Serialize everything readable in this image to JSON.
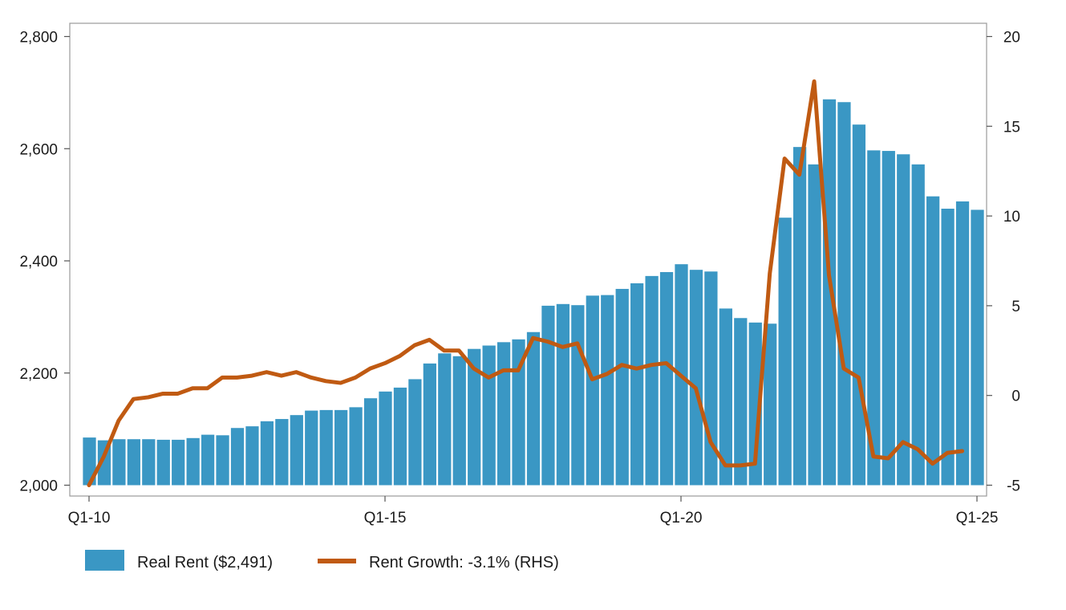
{
  "chart_data": {
    "type": "bar+line",
    "title": "",
    "xlabel": "",
    "ylabel": "",
    "x_tick_labels": [
      "Q1-10",
      "Q1-15",
      "Q1-20",
      "Q1-25"
    ],
    "y_left": {
      "lim": [
        2000,
        2800
      ],
      "ticks": [
        2000,
        2200,
        2400,
        2600,
        2800
      ],
      "tick_labels": [
        "2,000",
        "2,200",
        "2,400",
        "2,600",
        "2,800"
      ]
    },
    "y_right": {
      "lim": [
        -5,
        20
      ],
      "ticks": [
        -5,
        0,
        5,
        10,
        15,
        20
      ],
      "tick_labels": [
        "-5",
        "0",
        "5",
        "10",
        "15",
        "20"
      ]
    },
    "grid": false,
    "legend_placement": "bottom-left",
    "series": [
      {
        "name": "Real Rent ($2,491)",
        "type": "bar",
        "axis": "left",
        "color": "#3a97c4",
        "values": [
          2085,
          2080,
          2082,
          2082,
          2082,
          2081,
          2081,
          2084,
          2090,
          2089,
          2102,
          2105,
          2114,
          2118,
          2125,
          2133,
          2134,
          2134,
          2139,
          2155,
          2167,
          2174,
          2189,
          2217,
          2235,
          2230,
          2243,
          2249,
          2255,
          2260,
          2273,
          2320,
          2323,
          2321,
          2338,
          2339,
          2350,
          2360,
          2373,
          2380,
          2394,
          2384,
          2381,
          2315,
          2298,
          2290,
          2288,
          2477,
          2603,
          2572,
          2688,
          2683,
          2643,
          2597,
          2596,
          2590,
          2572,
          2515,
          2493,
          2506,
          2491
        ]
      },
      {
        "name": "Rent Growth: -3.1% (RHS)",
        "type": "line",
        "axis": "right",
        "color": "#c05a12",
        "values": [
          -5.0,
          -3.4,
          -1.4,
          -0.2,
          -0.1,
          0.1,
          0.1,
          0.4,
          0.4,
          1.0,
          1.0,
          1.1,
          1.3,
          1.1,
          1.3,
          1.0,
          0.8,
          0.7,
          1.0,
          1.5,
          1.8,
          2.2,
          2.8,
          3.1,
          2.5,
          2.5,
          1.5,
          1.0,
          1.4,
          1.4,
          3.2,
          3.0,
          2.7,
          2.9,
          0.9,
          1.2,
          1.7,
          1.5,
          1.7,
          1.8,
          1.1,
          0.4,
          -2.6,
          -3.9,
          -3.9,
          -3.8,
          6.8,
          13.2,
          12.3,
          17.5,
          6.7,
          1.5,
          1.0,
          -3.4,
          -3.5,
          -2.6,
          -3.0,
          -3.8,
          -3.2,
          -3.1
        ]
      }
    ]
  }
}
